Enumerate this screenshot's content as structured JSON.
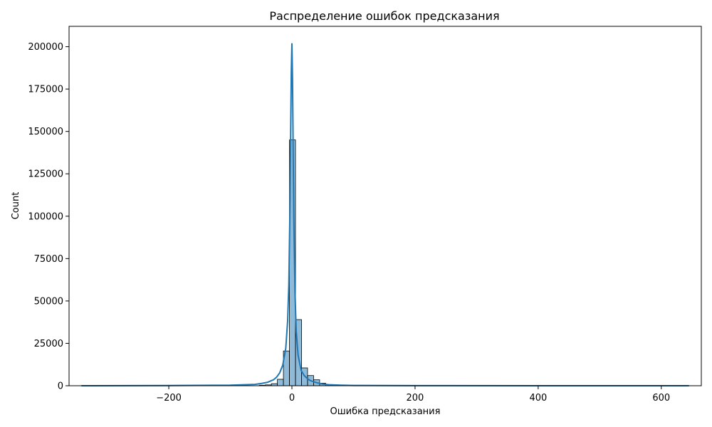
{
  "chart_data": {
    "type": "bar",
    "title": "Распределение ошибок предсказания",
    "xlabel": "Ошибка предсказания",
    "ylabel": "Count",
    "xlim": [
      -362,
      665
    ],
    "ylim": [
      0,
      212000
    ],
    "xticks": [
      -200,
      0,
      200,
      400,
      600
    ],
    "xtick_labels": [
      "−200",
      "0",
      "200",
      "400",
      "600"
    ],
    "yticks": [
      0,
      25000,
      50000,
      75000,
      100000,
      125000,
      150000,
      175000,
      200000
    ],
    "ytick_labels": [
      "0",
      "25000",
      "50000",
      "75000",
      "100000",
      "125000",
      "150000",
      "175000",
      "200000"
    ],
    "bin_width": 9.8,
    "bins": [
      {
        "x0": -342.0,
        "count": 0
      },
      {
        "x0": -53.0,
        "count": 300
      },
      {
        "x0": -43.2,
        "count": 500
      },
      {
        "x0": -33.4,
        "count": 1200
      },
      {
        "x0": -23.6,
        "count": 3800
      },
      {
        "x0": -13.8,
        "count": 20500
      },
      {
        "x0": -4.0,
        "count": 145000
      },
      {
        "x0": 5.8,
        "count": 39000
      },
      {
        "x0": 15.6,
        "count": 10500
      },
      {
        "x0": 25.4,
        "count": 6000
      },
      {
        "x0": 35.2,
        "count": 3500
      },
      {
        "x0": 45.0,
        "count": 1500
      },
      {
        "x0": 54.8,
        "count": 700
      },
      {
        "x0": 64.6,
        "count": 300
      },
      {
        "x0": 74.4,
        "count": 150
      }
    ],
    "kde": {
      "name": "KDE",
      "x": [
        -342,
        -200,
        -100,
        -60,
        -50,
        -40,
        -30,
        -25,
        -20,
        -15,
        -10,
        -7,
        -5,
        -3,
        -2,
        -1,
        0,
        1,
        2,
        3,
        5,
        7,
        10,
        15,
        20,
        25,
        30,
        40,
        50,
        60,
        80,
        100,
        200,
        400,
        645
      ],
      "y": [
        0,
        100,
        300,
        800,
        1300,
        2000,
        3500,
        5000,
        7500,
        12000,
        22000,
        38000,
        60000,
        110000,
        150000,
        185000,
        202000,
        180000,
        140000,
        100000,
        55000,
        32000,
        18000,
        9000,
        6000,
        4200,
        3000,
        1800,
        1000,
        600,
        300,
        150,
        50,
        10,
        0
      ]
    },
    "colors": {
      "bar_fill": "#1f77b4",
      "bar_alpha": 0.5,
      "bar_edge": "#000000",
      "line": "#1f77b4"
    },
    "grid": false,
    "legend": "none"
  }
}
